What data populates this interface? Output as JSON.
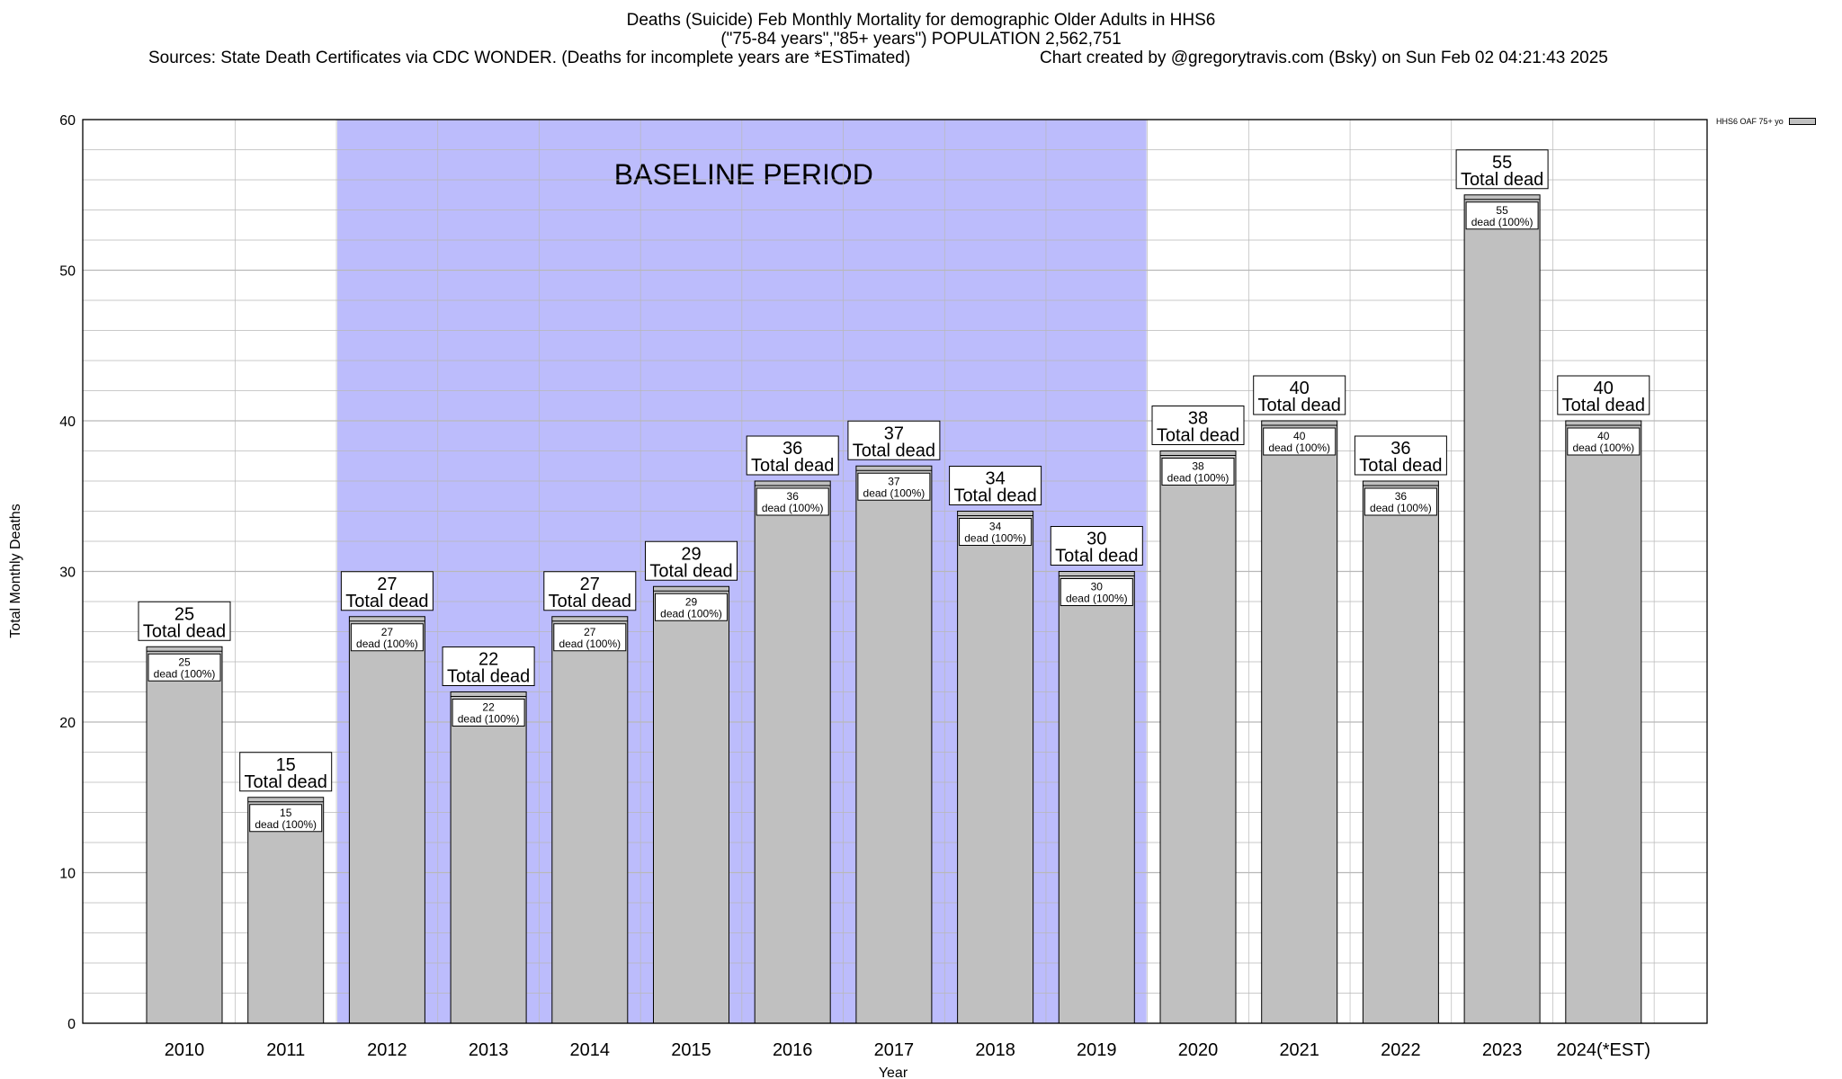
{
  "title": {
    "line1": "Deaths (Suicide) Feb Monthly Mortality for demographic Older Adults in HHS6",
    "line2": "(\"75-84 years\",\"85+ years\") POPULATION 2,562,751",
    "sources": "Sources: State Death Certificates via CDC WONDER. (Deaths for incomplete years are *ESTimated)",
    "credit": "Chart created by @gregorytravis.com (Bsky) on Sun Feb 02 04:21:43 2025"
  },
  "legend": {
    "label": "HHS6 OAF 75+ yo"
  },
  "colors": {
    "bar": "#c0c0c0",
    "baseline": "#bcbcfc",
    "grid": "#b8b8b8"
  },
  "chart_data": {
    "type": "bar",
    "xlabel": "Year",
    "ylabel": "Total Monthly Deaths",
    "ylim": [
      0,
      60
    ],
    "yticks": [
      0,
      10,
      20,
      30,
      40,
      50,
      60
    ],
    "grid": true,
    "legend_position": "top-right",
    "categories": [
      "2010",
      "2011",
      "2012",
      "2013",
      "2014",
      "2015",
      "2016",
      "2017",
      "2018",
      "2019",
      "2020",
      "2021",
      "2022",
      "2023",
      "2024(*EST)"
    ],
    "series": [
      {
        "name": "HHS6 OAF 75+ yo",
        "values": [
          25,
          15,
          27,
          22,
          27,
          29,
          36,
          37,
          34,
          30,
          38,
          40,
          36,
          55,
          40
        ]
      }
    ],
    "top_label_suffix": "Total dead",
    "inner_label_suffix": "dead (100%)",
    "baseline_period": {
      "label": "BASELINE PERIOD",
      "from": "2012",
      "to": "2019"
    }
  }
}
